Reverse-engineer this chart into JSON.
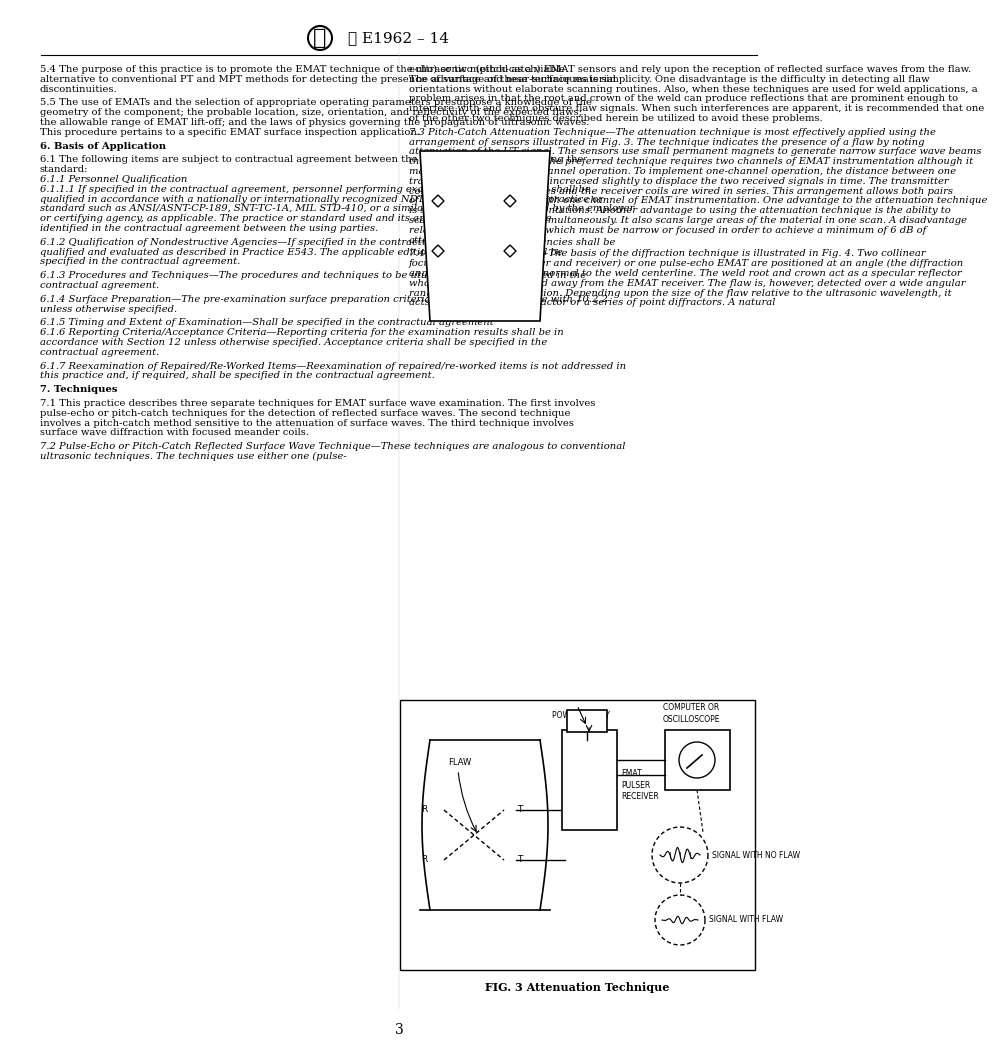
{
  "page_bg": "#ffffff",
  "text_color": "#000000",
  "red_color": "#cc0000",
  "header_text": "E1962 – 14",
  "page_number": "3",
  "fig_caption": "FIG. 3 Attenuation Technique",
  "left_col_paragraphs": [
    {
      "indent": false,
      "bold_prefix": "",
      "italic_prefix": "",
      "text": "5.4 The purpose of this practice is to promote the EMAT technique of the ultrasonic method as a viable alternative to conventional PT and MPT methods for detecting the presence of surface and near-surface material discontinuities."
    },
    {
      "indent": true,
      "bold_prefix": "",
      "italic_prefix": "",
      "text": "5.5 The use of EMATs and the selection of appropriate operating parameters presuppose a knowledge of the geometry of the component; the probable location, size, orientation, and reflectivity of the expected flaws; the allowable range of EMAT lift-off; and the laws of physics governing the propagation of ultrasonic waves. This procedure pertains to a specific EMAT surface inspection application."
    },
    {
      "indent": false,
      "bold_prefix": "6. Basis of Application",
      "italic_prefix": "",
      "text": ""
    },
    {
      "indent": true,
      "bold_prefix": "",
      "italic_prefix": "",
      "text": "6.1 The following items are subject to contractual agreement between the parties using or referencing the standard:"
    },
    {
      "indent": true,
      "bold_prefix": "",
      "italic_prefix": "6.1.1 Personnel Qualification",
      "text": ""
    },
    {
      "indent": true,
      "bold_prefix": "",
      "italic_prefix": "6.1.1.1 If specified in the contractual agreement,",
      "text": " personnel performing examination to this practice shall be qualified in accordance with a nationally or internationally recognized NDT personnel qualification practice or standard such as ANSI/ASNT-CP-189, SNT-TC-1A, MIL STD-410, or a similar document and certified by the employer or certifying agency, as applicable. The practice or standard used and its applicable revision shall be identified in the contractual agreement between the using parties."
    },
    {
      "indent": true,
      "bold_prefix": "",
      "italic_prefix": "6.1.2 Qualification of Nondestructive Agencies",
      "text": "—If specified in the contractual agreement, NDT agencies shall be qualified and evaluated as described in Practice E543. The applicable edition of Practice E543 shall be specified in the contractual agreement."
    },
    {
      "indent": true,
      "bold_prefix": "",
      "italic_prefix": "6.1.3 Procedures and Techniques",
      "text": "—The procedures and techniques to be utilized shall be as specified in the contractual agreement."
    },
    {
      "indent": true,
      "bold_prefix": "",
      "italic_prefix": "6.1.4 Surface Preparation",
      "text": "—The pre-examination surface preparation criteria shall be in accordance with 10.2.2 unless otherwise specified."
    },
    {
      "indent": true,
      "bold_prefix": "",
      "italic_prefix": "6.1.5 Timing and Extent of Examination",
      "text": "—Shall be specified in the contractual agreement"
    },
    {
      "indent": true,
      "bold_prefix": "",
      "italic_prefix": "6.1.6 Reporting Criteria/Acceptance Criteria",
      "text": "—Reporting criteria for the examination results shall be in accordance with Section 12 unless otherwise specified. Acceptance criteria shall be specified in the contractual agreement."
    },
    {
      "indent": true,
      "bold_prefix": "",
      "italic_prefix": "6.1.7 Reexamination of Repaired/Re-Worked Items",
      "text": "—Reexamination of repaired/re-worked items is not addressed in this practice and, if required, shall be specified in the contractual agreement."
    },
    {
      "indent": false,
      "bold_prefix": "7. Techniques",
      "italic_prefix": "",
      "text": ""
    },
    {
      "indent": true,
      "bold_prefix": "",
      "italic_prefix": "",
      "text": "7.1 This practice describes three separate techniques for EMAT surface wave examination. The first involves pulse-echo or pitch-catch techniques for the detection of reflected surface waves. The second technique involves a pitch-catch method sensitive to the attenuation of surface waves. The third technique involves surface wave diffraction with focused meander coils."
    },
    {
      "indent": true,
      "bold_prefix": "",
      "italic_prefix": "7.2 Pulse-Echo or Pitch-Catch Reflected Surface Wave Technique",
      "text": "—These techniques are analogous to conventional ultrasonic techniques. The techniques use either one (pulse-"
    }
  ],
  "right_col_paragraphs": [
    {
      "text": "echo) or two (pitch-catch) EMAT sensors and rely upon the reception of reflected surface waves from the flaw. The advantage of these techniques is simplicity. One disadvantage is the difficulty in detecting all flaw orientations without elaborate scanning routines. Also, when these techniques are used for weld applications, a problem arises in that the root and crown of the weld can produce reflections that are prominent enough to interfere with and even obscure flaw signals. When such interferences are apparent, it is recommended that one of the other two techniques described herein be utilized to avoid these problems."
    },
    {
      "italic_prefix": "7.3 Pitch-Catch Attenuation Technique",
      "text": "—The attenuation technique is most effectively applied using the arrangement of sensors illustrated in Fig. 3. The technique indicates the presence of a flaw by noting attenuation of the UT signal. The sensors use small permanent magnets to generate narrow surface wave beams that cross at right angles. The preferred technique requires two channels of EMAT instrumentation although it may be modified for one-channel operation. To implement one-channel operation, the distance between one transmitter receiver pair is increased slightly to displace the two received signals in time. The transmitter coils are then wired in series and the receiver coils are wired in series. This arrangement allows both pairs of EMAT coils to be used with one channel of EMAT instrumentation. One advantage to the attenuation technique is sensitivity to all flaw orientations. Another advantage to using the attenuation technique is the ability to scan both sides of a weld simultaneously. It also scans large areas of the material in one scan. A disadvantage relates to the beam width, which must be narrow or focused in order to achieve a minimum of 6 dB of attenuation."
    },
    {
      "italic_prefix": "7.4 Diffraction Technique",
      "text": "—The basis of the diffraction technique is illustrated in Fig. 4. Two collinear focused EMATs (transmitter and receiver) or one pulse-echo EMAT are positioned at an angle (the diffraction angle) with respect to the normal to the weld centerline. The weld root and crown act as a specular reflector whose signals are reflected away from the EMAT receiver. The flaw is, however, detected over a wide angular range by means of diffraction. Depending upon the size of the flaw relative to the ultrasonic wavelength, it acts as either a point diffractor or a series of point diffractors. A natural"
    }
  ]
}
